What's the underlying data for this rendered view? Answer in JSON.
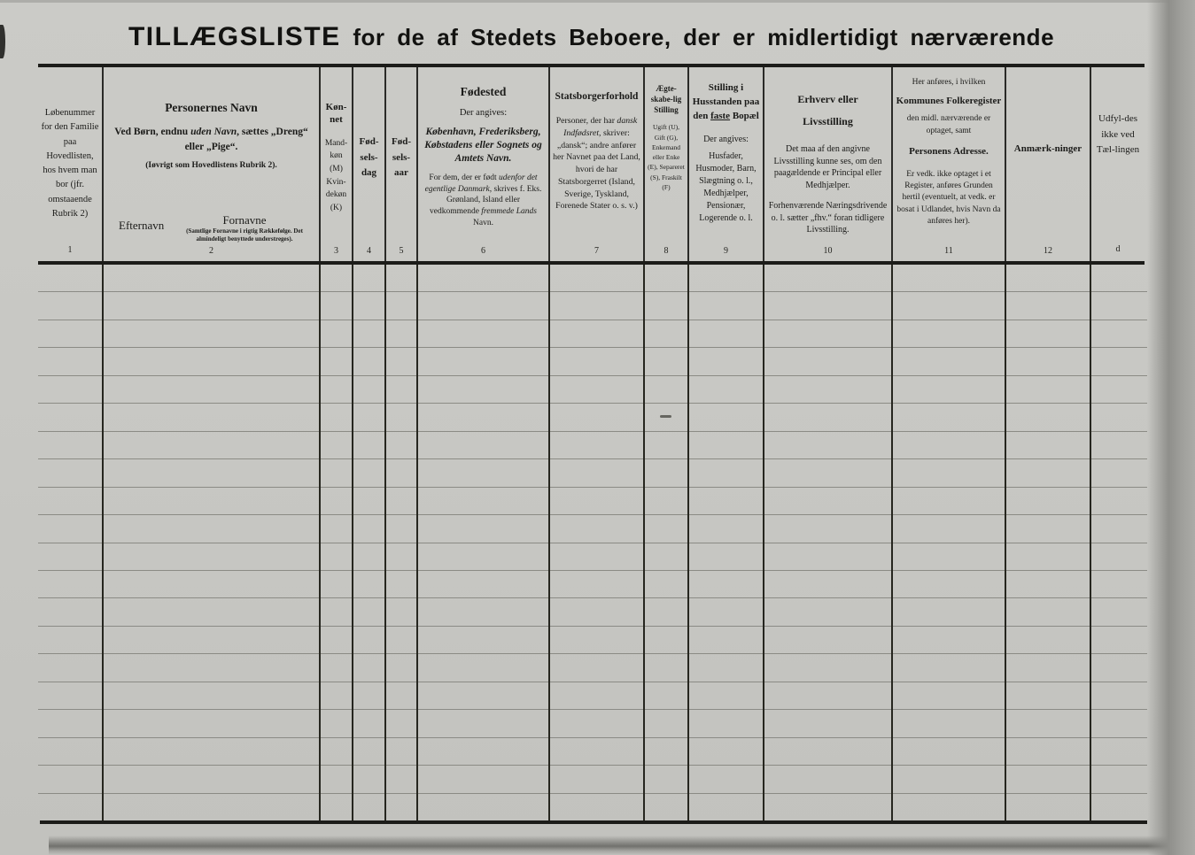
{
  "title": {
    "strong": "TILLÆGSLISTE",
    "rest": " for de af Stedets Beboere, der er midlertidigt nærværende"
  },
  "columns": {
    "c1": {
      "number": "1",
      "text": "Løbenummer for den Familie paa Hovedlisten, hos hvem man bor (jfr. omstaaende Rubrik 2)"
    },
    "c2": {
      "number": "2",
      "title": "Personernes Navn",
      "p1_a": "Ved Børn, endnu ",
      "p1_i": "uden Navn",
      "p1_b": ", sættes „Dreng“ eller „Pige“.",
      "p2": "(Iøvrigt som Hovedlistens Rubrik 2).",
      "surname_label": "Efternavn",
      "firstnames_label": "Fornavne",
      "firstnames_note": "(Samtlige Fornavne i rigtig Rækkefølge. Det almindeligt benyttede understreges)."
    },
    "c3": {
      "number": "3",
      "title": "Køn-net",
      "sub": "Mand-køn (M) Kvin-dekøn (K)"
    },
    "c4": {
      "number": "4",
      "title": "Fød-sels-dag"
    },
    "c5": {
      "number": "5",
      "title": "Fød-sels-aar"
    },
    "c6": {
      "number": "6",
      "title": "Fødested",
      "intro": "Der angives:",
      "p1": "København, Frederiksberg, Købstadens eller Sognets og Amtets Navn.",
      "p2_a": "For dem, der er født ",
      "p2_i1": "udenfor det egentlige Danmark",
      "p2_b": ", skrives f. Eks. Grønland, Island eller vedkommende ",
      "p2_i2": "fremmede Lands",
      "p2_c": " Navn."
    },
    "c7": {
      "number": "7",
      "title": "Statsborgerforhold",
      "p1_a": "Personer, der har ",
      "p1_i": "dansk Indfødsret",
      "p1_b": ", skriver: „dansk“; andre anfører her Navnet paa det Land, hvori de har Statsborgerret (Island, Sverige, Tyskland, Forenede Stater o. s. v.)"
    },
    "c8": {
      "number": "8",
      "title": "Ægte-skabe-lig Stilling",
      "sub": "Ugift (U), Gift (G), Enkemand eller Enke (E), Separeret (S), Fraskilt (F)"
    },
    "c9": {
      "number": "9",
      "title_a": "Stilling i Husstanden paa den ",
      "title_u": "faste",
      "title_b": " Bopæl",
      "intro": "Der angives:",
      "list": "Husfader, Husmoder, Barn, Slægtning o. l., Medhjælper, Pensionær, Logerende o. l."
    },
    "c10": {
      "number": "10",
      "title": "Erhverv eller Livsstilling",
      "p1": "Det maa af den angivne Livsstilling kunne ses, om den paagældende er Principal eller Medhjælper.",
      "p2": "Forhenværende Næringsdrivende o. l. sætter „fhv.“ foran tidligere Livsstilling."
    },
    "c11": {
      "number": "11",
      "pre": "Her anføres, i hvilken",
      "title_1": "Kommunes Folkeregister",
      "mid": "den midl. nærværende er optaget, samt",
      "title_2": "Personens Adresse.",
      "p": "Er vedk. ikke optaget i et Register, anføres Grunden hertil (eventuelt, at vedk. er bosat i Udlandet, hvis Navn da anføres her)."
    },
    "c12": {
      "number": "12",
      "title": "Anmærk-ninger"
    },
    "cd": {
      "number": "d",
      "text": "Udfyl-des ikke ved Tæl-lingen"
    }
  },
  "body": {
    "row_count": 20
  }
}
